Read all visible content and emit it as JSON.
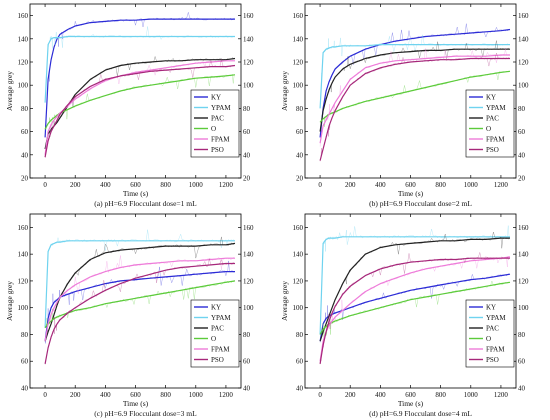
{
  "chart_data": [
    {
      "type": "line",
      "caption": "(a) pH=6.9  Flocculant dose=1 mL",
      "xlabel": "Time (s)",
      "ylabel": "Average grey",
      "xlim": [
        -100,
        1300
      ],
      "ylim": [
        20,
        170
      ],
      "xticks": [
        0,
        200,
        400,
        600,
        800,
        1000,
        1200
      ],
      "yticks": [
        20,
        40,
        60,
        80,
        100,
        120,
        140,
        160
      ],
      "secondary_y_axis": true,
      "grid": false,
      "legend_position": "right",
      "x": [
        0,
        20,
        40,
        60,
        80,
        100,
        150,
        200,
        300,
        400,
        500,
        600,
        700,
        800,
        900,
        1000,
        1100,
        1200,
        1260
      ],
      "series": [
        {
          "name": "KY",
          "color": "#2b2bd6",
          "values": [
            55,
            105,
            122,
            133,
            140,
            144,
            148,
            151,
            154,
            155,
            156,
            156,
            157,
            157,
            157,
            157,
            157,
            157,
            157
          ]
        },
        {
          "name": "YPAM",
          "color": "#6fd3ef",
          "values": [
            85,
            135,
            140,
            141,
            141,
            141,
            142,
            142,
            142,
            142,
            142,
            142,
            142,
            142,
            142,
            142,
            142,
            142,
            142
          ]
        },
        {
          "name": "PAC",
          "color": "#222222",
          "values": [
            45,
            58,
            62,
            65,
            68,
            72,
            82,
            92,
            105,
            113,
            117,
            119,
            120,
            121,
            121,
            122,
            122,
            122,
            123
          ]
        },
        {
          "name": "O",
          "color": "#5ccb3a",
          "values": [
            62,
            67,
            70,
            72,
            74,
            76,
            79,
            82,
            87,
            91,
            95,
            98,
            100,
            102,
            104,
            106,
            107,
            108,
            109
          ]
        },
        {
          "name": "FPAM",
          "color": "#ee7bd9",
          "values": [
            40,
            60,
            66,
            70,
            73,
            76,
            82,
            88,
            97,
            104,
            108,
            111,
            113,
            115,
            117,
            119,
            120,
            121,
            121
          ]
        },
        {
          "name": "PSO",
          "color": "#a6277a",
          "values": [
            38,
            52,
            60,
            65,
            70,
            75,
            83,
            90,
            99,
            105,
            108,
            110,
            112,
            113,
            114,
            115,
            116,
            116,
            117
          ]
        }
      ]
    },
    {
      "type": "line",
      "caption": "(b) pH=6.9  Flocculant dose=2 mL",
      "xlabel": "Time (s)",
      "ylabel": "Average grey",
      "xlim": [
        -100,
        1300
      ],
      "ylim": [
        20,
        170
      ],
      "xticks": [
        0,
        200,
        400,
        600,
        800,
        1000,
        1200
      ],
      "yticks": [
        20,
        40,
        60,
        80,
        100,
        120,
        140,
        160
      ],
      "secondary_y_axis": true,
      "grid": false,
      "legend_position": "right",
      "x": [
        0,
        20,
        40,
        60,
        80,
        100,
        150,
        200,
        300,
        400,
        500,
        600,
        700,
        800,
        900,
        1000,
        1100,
        1200,
        1260
      ],
      "series": [
        {
          "name": "KY",
          "color": "#2b2bd6",
          "values": [
            55,
            80,
            95,
            103,
            109,
            114,
            120,
            125,
            131,
            135,
            138,
            140,
            142,
            143,
            144,
            145,
            146,
            147,
            148
          ]
        },
        {
          "name": "YPAM",
          "color": "#6fd3ef",
          "values": [
            80,
            128,
            131,
            132,
            133,
            133,
            134,
            134,
            134,
            135,
            135,
            135,
            135,
            135,
            135,
            135,
            135,
            135,
            135
          ]
        },
        {
          "name": "PAC",
          "color": "#222222",
          "values": [
            60,
            78,
            88,
            96,
            102,
            107,
            114,
            118,
            123,
            126,
            128,
            129,
            130,
            130,
            131,
            131,
            131,
            131,
            131
          ]
        },
        {
          "name": "O",
          "color": "#5ccb3a",
          "values": [
            68,
            71,
            73,
            75,
            76,
            77,
            80,
            82,
            86,
            89,
            92,
            95,
            98,
            101,
            104,
            107,
            109,
            111,
            112
          ]
        },
        {
          "name": "FPAM",
          "color": "#ee7bd9",
          "values": [
            50,
            65,
            70,
            75,
            80,
            85,
            95,
            105,
            115,
            119,
            121,
            122,
            123,
            124,
            125,
            125,
            125,
            126,
            126
          ]
        },
        {
          "name": "PSO",
          "color": "#a6277a",
          "values": [
            35,
            45,
            55,
            65,
            72,
            78,
            90,
            100,
            110,
            115,
            118,
            120,
            121,
            122,
            122,
            123,
            123,
            123,
            123
          ]
        }
      ]
    },
    {
      "type": "line",
      "caption": "(c) pH=6.9  Flocculant dose=3 mL",
      "xlabel": "Time (s)",
      "ylabel": "Average grey",
      "xlim": [
        -100,
        1300
      ],
      "ylim": [
        40,
        170
      ],
      "xticks": [
        0,
        200,
        400,
        600,
        800,
        1000,
        1200
      ],
      "yticks": [
        40,
        60,
        80,
        100,
        120,
        140,
        160
      ],
      "secondary_y_axis": true,
      "grid": false,
      "legend_position": "right",
      "x": [
        0,
        20,
        40,
        60,
        80,
        100,
        150,
        200,
        300,
        400,
        500,
        600,
        700,
        800,
        900,
        1000,
        1100,
        1200,
        1260
      ],
      "series": [
        {
          "name": "KY",
          "color": "#2b2bd6",
          "values": [
            75,
            92,
            100,
            104,
            106,
            108,
            110,
            112,
            115,
            118,
            120,
            121,
            122,
            123,
            124,
            125,
            126,
            127,
            127
          ]
        },
        {
          "name": "YPAM",
          "color": "#6fd3ef",
          "values": [
            85,
            142,
            147,
            148,
            149,
            149,
            150,
            150,
            150,
            150,
            150,
            150,
            150,
            150,
            150,
            150,
            150,
            150,
            150
          ]
        },
        {
          "name": "PAC",
          "color": "#222222",
          "values": [
            75,
            82,
            88,
            95,
            102,
            108,
            118,
            126,
            136,
            141,
            143,
            144,
            145,
            146,
            146,
            146,
            147,
            147,
            148
          ]
        },
        {
          "name": "O",
          "color": "#5ccb3a",
          "values": [
            85,
            88,
            90,
            92,
            93,
            94,
            96,
            98,
            100,
            103,
            105,
            107,
            109,
            111,
            113,
            115,
            117,
            119,
            120
          ]
        },
        {
          "name": "FPAM",
          "color": "#ee7bd9",
          "values": [
            75,
            88,
            95,
            100,
            104,
            108,
            113,
            117,
            123,
            127,
            130,
            132,
            133,
            134,
            135,
            135,
            136,
            137,
            137
          ]
        },
        {
          "name": "PSO",
          "color": "#a6277a",
          "values": [
            58,
            70,
            78,
            84,
            88,
            91,
            96,
            100,
            107,
            113,
            118,
            122,
            125,
            128,
            130,
            131,
            132,
            133,
            133
          ]
        }
      ]
    },
    {
      "type": "line",
      "caption": "(d) pH=6.9  Flocculant dose=4 mL",
      "xlabel": "Time (s)",
      "ylabel": "Average grey",
      "xlim": [
        -100,
        1300
      ],
      "ylim": [
        40,
        170
      ],
      "xticks": [
        0,
        200,
        400,
        600,
        800,
        1000,
        1200
      ],
      "yticks": [
        40,
        60,
        80,
        100,
        120,
        140,
        160
      ],
      "secondary_y_axis": true,
      "grid": false,
      "legend_position": "right",
      "x": [
        0,
        20,
        40,
        60,
        80,
        100,
        150,
        200,
        300,
        400,
        500,
        600,
        700,
        800,
        900,
        1000,
        1100,
        1200,
        1260
      ],
      "series": [
        {
          "name": "KY",
          "color": "#2b2bd6",
          "values": [
            75,
            88,
            92,
            94,
            95,
            96,
            98,
            100,
            104,
            107,
            110,
            113,
            115,
            117,
            119,
            121,
            122,
            124,
            125
          ]
        },
        {
          "name": "YPAM",
          "color": "#6fd3ef",
          "values": [
            80,
            148,
            151,
            152,
            152,
            152,
            153,
            153,
            153,
            153,
            153,
            153,
            153,
            153,
            153,
            153,
            153,
            153,
            153
          ]
        },
        {
          "name": "PAC",
          "color": "#222222",
          "values": [
            75,
            82,
            88,
            94,
            100,
            106,
            118,
            128,
            140,
            145,
            147,
            148,
            149,
            150,
            150,
            151,
            151,
            152,
            152
          ]
        },
        {
          "name": "O",
          "color": "#5ccb3a",
          "values": [
            80,
            84,
            86,
            88,
            89,
            90,
            92,
            94,
            97,
            100,
            103,
            106,
            108,
            110,
            112,
            114,
            116,
            118,
            119
          ]
        },
        {
          "name": "FPAM",
          "color": "#ee7bd9",
          "values": [
            60,
            75,
            82,
            87,
            90,
            93,
            98,
            103,
            112,
            118,
            122,
            126,
            129,
            131,
            133,
            135,
            136,
            137,
            138
          ]
        },
        {
          "name": "PSO",
          "color": "#a6277a",
          "values": [
            58,
            72,
            82,
            90,
            96,
            101,
            110,
            116,
            124,
            129,
            132,
            134,
            135,
            136,
            136,
            137,
            137,
            137,
            137
          ]
        }
      ]
    }
  ]
}
